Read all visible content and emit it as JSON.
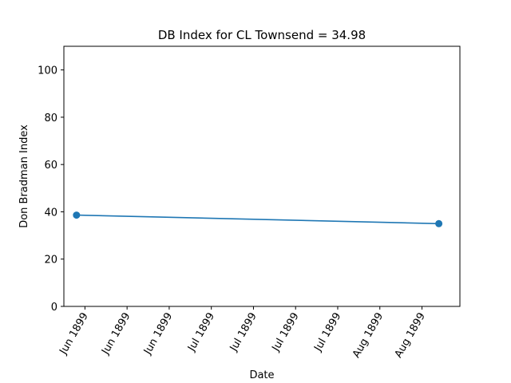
{
  "chart_data": {
    "type": "line",
    "title": "DB Index for CL Townsend = 34.98",
    "xlabel": "Date",
    "ylabel": "Don Bradman Index",
    "ylim": [
      0,
      110
    ],
    "yticks": [
      0,
      20,
      40,
      60,
      80,
      100
    ],
    "xlim": [
      "1899-05-27",
      "1899-08-29"
    ],
    "xticks": [
      {
        "date": "1899-06-01",
        "label": "Jun 1899"
      },
      {
        "date": "1899-06-11",
        "label": "Jun 1899"
      },
      {
        "date": "1899-06-21",
        "label": "Jun 1899"
      },
      {
        "date": "1899-07-01",
        "label": "Jul 1899"
      },
      {
        "date": "1899-07-11",
        "label": "Jul 1899"
      },
      {
        "date": "1899-07-21",
        "label": "Jul 1899"
      },
      {
        "date": "1899-07-31",
        "label": "Jul 1899"
      },
      {
        "date": "1899-08-10",
        "label": "Aug 1899"
      },
      {
        "date": "1899-08-20",
        "label": "Aug 1899"
      }
    ],
    "series": [
      {
        "color": "#1f77b4",
        "marker": "circle",
        "points": [
          {
            "x": "1899-05-30",
            "y": 38.6
          },
          {
            "x": "1899-08-24",
            "y": 35.0
          }
        ]
      }
    ],
    "grid": false,
    "legend": "none"
  }
}
